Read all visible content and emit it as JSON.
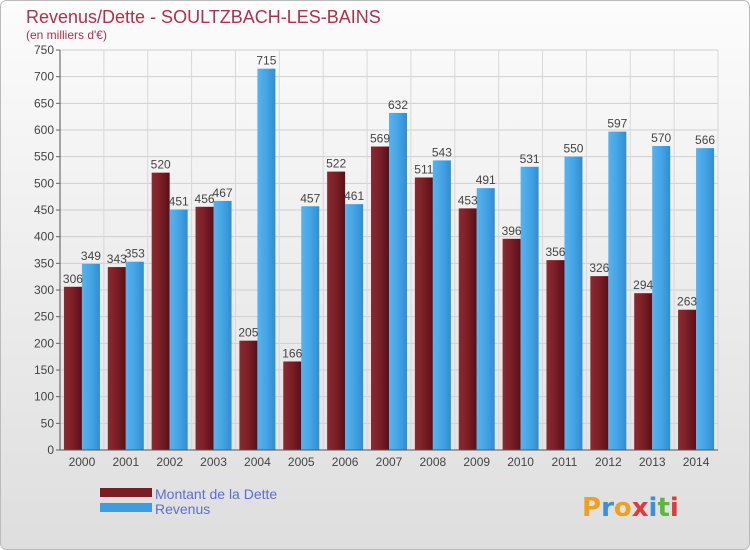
{
  "chart_data": {
    "type": "bar",
    "title": "Revenus/Dette - SOULTZBACH-LES-BAINS",
    "subtitle": "(en milliers d'€)",
    "categories": [
      "2000",
      "2001",
      "2002",
      "2003",
      "2004",
      "2005",
      "2006",
      "2007",
      "2008",
      "2009",
      "2010",
      "2011",
      "2012",
      "2013",
      "2014"
    ],
    "series": [
      {
        "name": "Montant de la Dette",
        "color": "#7a1e26",
        "values": [
          306,
          343,
          520,
          456,
          205,
          166,
          522,
          569,
          511,
          453,
          396,
          356,
          326,
          294,
          263
        ]
      },
      {
        "name": "Revenus",
        "color": "#3d9de0",
        "values": [
          349,
          353,
          451,
          467,
          715,
          457,
          461,
          632,
          543,
          491,
          531,
          550,
          597,
          570,
          566
        ]
      }
    ],
    "ylim": [
      0,
      750
    ],
    "yticks": [
      0,
      50,
      100,
      150,
      200,
      250,
      300,
      350,
      400,
      450,
      500,
      550,
      600,
      650,
      700,
      750
    ],
    "grid": true,
    "legend_position": "bottom-left"
  },
  "logo": {
    "text": "Proxiti"
  }
}
